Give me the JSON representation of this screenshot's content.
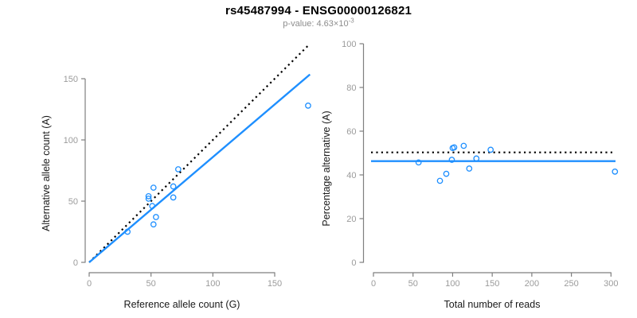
{
  "title": "rs45487994 - ENSG00000126821",
  "subtitle": {
    "prefix": "p-value: 4.63×10",
    "exponent": "-3"
  },
  "colors": {
    "accent_blue": "#1E8FFF",
    "reference_black": "#000000",
    "axis_gray": "#7f7f7f",
    "tick_label_gray": "#9b9b9b",
    "axis_title_color": "#1a1a1a"
  },
  "chart_data": [
    {
      "type": "scatter",
      "panel": "left",
      "xlabel": "Reference allele count (G)",
      "ylabel": "Alternative allele count (A)",
      "xticks": [
        0,
        50,
        100,
        150
      ],
      "yticks": [
        0,
        50,
        100,
        150
      ],
      "xlim": [
        0,
        178
      ],
      "ylim": [
        0,
        179
      ],
      "grid": false,
      "legend": "none",
      "points": [
        [
          31,
          25
        ],
        [
          48,
          52
        ],
        [
          48,
          54
        ],
        [
          51,
          46
        ],
        [
          52,
          31
        ],
        [
          52,
          61
        ],
        [
          54,
          37
        ],
        [
          68,
          53
        ],
        [
          68,
          62
        ],
        [
          72,
          76
        ],
        [
          177,
          128
        ]
      ],
      "lines": [
        {
          "name": "identity-line",
          "dash": true,
          "color": "#000000",
          "x1": 0,
          "y1": 0,
          "x2": 177.3,
          "y2": 177.3
        },
        {
          "name": "regression-line",
          "dash": false,
          "color": "#1E8FFF",
          "x1": 0,
          "y1": 0,
          "x2": 178.5,
          "y2": 153.5
        }
      ]
    },
    {
      "type": "scatter",
      "panel": "right",
      "xlabel": "Total number of reads",
      "ylabel": "Percentage alternative (A)",
      "xticks": [
        0,
        50,
        100,
        150,
        200,
        250,
        300
      ],
      "yticks": [
        0,
        20,
        40,
        60,
        80,
        100
      ],
      "xlim": [
        -7,
        309
      ],
      "ylim": [
        0,
        100
      ],
      "grid": false,
      "legend": "none",
      "points": [
        [
          57,
          45.7
        ],
        [
          84,
          37.3
        ],
        [
          92,
          40.5
        ],
        [
          99,
          46.9
        ],
        [
          100,
          52.3
        ],
        [
          102,
          52.6
        ],
        [
          114,
          53.3
        ],
        [
          121,
          42.9
        ],
        [
          130,
          47.5
        ],
        [
          148,
          51.5
        ],
        [
          305,
          41.5
        ]
      ],
      "lines": [
        {
          "name": "null-percentage-line",
          "dash": true,
          "color": "#000000",
          "y": 50.3
        },
        {
          "name": "mean-percentage-line",
          "dash": false,
          "color": "#1E8FFF",
          "y": 46.3
        }
      ]
    }
  ]
}
